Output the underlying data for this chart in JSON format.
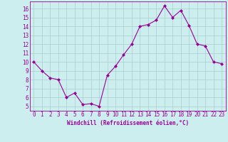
{
  "x": [
    0,
    1,
    2,
    3,
    4,
    5,
    6,
    7,
    8,
    9,
    10,
    11,
    12,
    13,
    14,
    15,
    16,
    17,
    18,
    19,
    20,
    21,
    22,
    23
  ],
  "y": [
    10,
    9,
    8.2,
    8,
    6,
    6.5,
    5.2,
    5.3,
    5,
    8.5,
    9.5,
    10.8,
    12,
    14,
    14.2,
    14.7,
    16.3,
    15,
    15.8,
    14.1,
    12,
    11.8,
    10,
    9.8
  ],
  "line_color": "#990099",
  "marker": "D",
  "marker_size": 2.0,
  "line_width": 0.8,
  "bg_color": "#cceeee",
  "grid_color": "#aacccc",
  "xlabel": "Windchill (Refroidissement éolien,°C)",
  "xlabel_fontsize": 5.5,
  "ylabel_ticks": [
    5,
    6,
    7,
    8,
    9,
    10,
    11,
    12,
    13,
    14,
    15,
    16
  ],
  "xlim": [
    -0.5,
    23.5
  ],
  "ylim": [
    4.5,
    16.8
  ],
  "tick_fontsize": 5.5,
  "xtick_labels": [
    "0",
    "1",
    "2",
    "3",
    "4",
    "5",
    "6",
    "7",
    "8",
    "9",
    "10",
    "11",
    "12",
    "13",
    "14",
    "15",
    "16",
    "17",
    "18",
    "19",
    "20",
    "21",
    "22",
    "23"
  ]
}
